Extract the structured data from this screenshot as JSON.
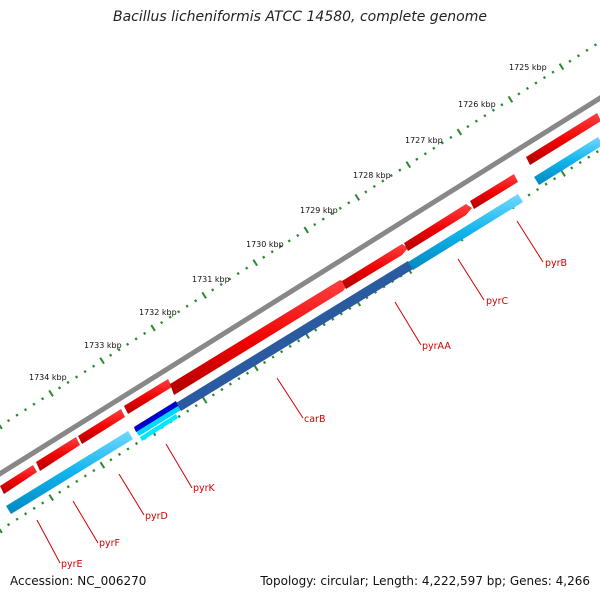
{
  "title": "Bacillus licheniformis ATCC 14580, complete genome",
  "footer": {
    "accession": "Accession: NC_006270",
    "summary": "Topology: circular; Length: 4,222,597 bp; Genes: 4,266"
  },
  "ticks": [
    "1725 kbp",
    "1726 kbp",
    "1727 kbp",
    "1728 kbp",
    "1729 kbp",
    "1730 kbp",
    "1731 kbp",
    "1732 kbp",
    "1733 kbp",
    "1734 kbp"
  ],
  "genes": [
    {
      "name": "pyrB"
    },
    {
      "name": "pyrC"
    },
    {
      "name": "pyrAA"
    },
    {
      "name": "carB"
    },
    {
      "name": "pyrK"
    },
    {
      "name": "pyrD"
    },
    {
      "name": "pyrF"
    },
    {
      "name": "pyrE"
    }
  ],
  "colors": {
    "forward_gene": "#ee0000",
    "reverse_gene": "#00aadd",
    "backbone": "#888888",
    "tick": "#2a8a2a",
    "label": "#d40000"
  }
}
